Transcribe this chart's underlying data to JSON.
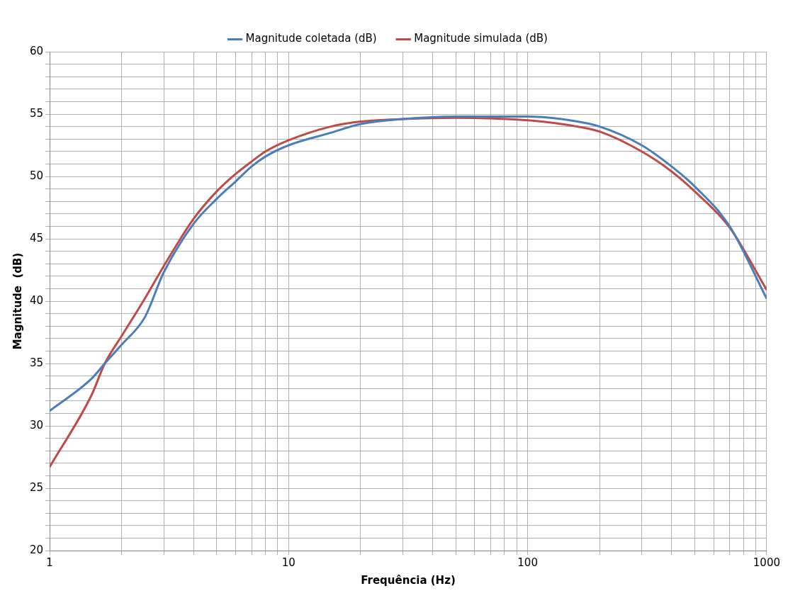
{
  "chart_data": {
    "type": "line",
    "xlabel": "Frequência (Hz)",
    "ylabel": "Magnitude  (dB)",
    "log": "x",
    "xlim": [
      1,
      1000
    ],
    "ylim": [
      20,
      60
    ],
    "xticks": [
      1,
      {
        "value": 2,
        "label": null
      },
      {
        "value": 3,
        "label": null
      },
      {
        "value": 4,
        "label": null
      },
      {
        "value": 5,
        "label": null
      },
      {
        "value": 6,
        "label": null
      },
      {
        "value": 7,
        "label": null
      },
      {
        "value": 8,
        "label": null
      },
      {
        "value": 9,
        "label": null
      },
      10,
      {
        "value": 20,
        "label": null
      },
      {
        "value": 30,
        "label": null
      },
      {
        "value": 40,
        "label": null
      },
      {
        "value": 50,
        "label": null
      },
      {
        "value": 60,
        "label": null
      },
      {
        "value": 70,
        "label": null
      },
      {
        "value": 80,
        "label": null
      },
      {
        "value": 90,
        "label": null
      },
      100,
      {
        "value": 200,
        "label": null
      },
      {
        "value": 300,
        "label": null
      },
      {
        "value": 400,
        "label": null
      },
      {
        "value": 500,
        "label": null
      },
      {
        "value": 600,
        "label": null
      },
      {
        "value": 700,
        "label": null
      },
      {
        "value": 800,
        "label": null
      },
      {
        "value": 900,
        "label": null
      },
      1000
    ],
    "yticks": [
      20,
      {
        "value": 21,
        "label": null
      },
      {
        "value": 22,
        "label": null
      },
      {
        "value": 23,
        "label": null
      },
      {
        "value": 24,
        "label": null
      },
      25,
      {
        "value": 26,
        "label": null
      },
      {
        "value": 27,
        "label": null
      },
      {
        "value": 28,
        "label": null
      },
      {
        "value": 29,
        "label": null
      },
      30,
      {
        "value": 31,
        "label": null
      },
      {
        "value": 32,
        "label": null
      },
      {
        "value": 33,
        "label": null
      },
      {
        "value": 34,
        "label": null
      },
      35,
      {
        "value": 36,
        "label": null
      },
      {
        "value": 37,
        "label": null
      },
      {
        "value": 38,
        "label": null
      },
      {
        "value": 39,
        "label": null
      },
      40,
      {
        "value": 41,
        "label": null
      },
      {
        "value": 42,
        "label": null
      },
      {
        "value": 43,
        "label": null
      },
      {
        "value": 44,
        "label": null
      },
      45,
      {
        "value": 46,
        "label": null
      },
      {
        "value": 47,
        "label": null
      },
      {
        "value": 48,
        "label": null
      },
      {
        "value": 49,
        "label": null
      },
      50,
      {
        "value": 51,
        "label": null
      },
      {
        "value": 52,
        "label": null
      },
      {
        "value": 53,
        "label": null
      },
      {
        "value": 54,
        "label": null
      },
      55,
      {
        "value": 56,
        "label": null
      },
      {
        "value": 57,
        "label": null
      },
      {
        "value": 58,
        "label": null
      },
      {
        "value": 59,
        "label": null
      },
      60
    ],
    "grid": true,
    "legend": "top",
    "marker": "none",
    "line_style": "solid",
    "x": [
      1,
      1.5,
      1.7,
      2,
      2.5,
      3,
      4,
      5,
      6,
      7,
      8,
      10,
      15,
      20,
      30,
      50,
      100,
      150,
      200,
      300,
      400,
      500,
      700,
      1000
    ],
    "series": [
      {
        "name": "Magnitude coletada (dB)",
        "color": "#4a7ebb",
        "values": [
          31.2,
          33.8,
          35,
          36.5,
          38.7,
          42.3,
          46.2,
          48.2,
          49.6,
          50.8,
          51.6,
          52.5,
          53.5,
          54.2,
          54.6,
          54.8,
          54.8,
          54.5,
          54.0,
          52.5,
          50.8,
          49.2,
          46,
          40.2
        ]
      },
      {
        "name": "Magnitude simulada (dB)",
        "color": "#be4b48",
        "values": [
          26.7,
          32.5,
          35,
          37.2,
          40.2,
          42.8,
          46.6,
          48.8,
          50.2,
          51.2,
          52.0,
          52.9,
          54.0,
          54.4,
          54.6,
          54.7,
          54.5,
          54.1,
          53.6,
          52.0,
          50.4,
          48.8,
          45.9,
          40.9
        ]
      }
    ]
  }
}
